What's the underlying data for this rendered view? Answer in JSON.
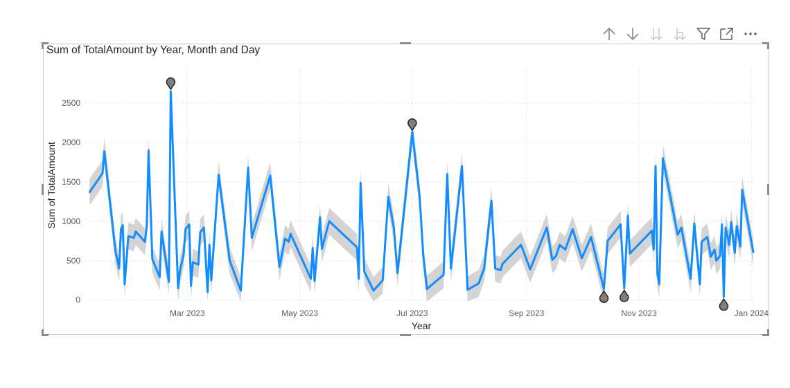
{
  "visual": {
    "title": "Sum of TotalAmount by Year, Month and Day"
  },
  "toolbar": {
    "items": [
      {
        "name": "drill-up",
        "icon": "arrow-up-icon"
      },
      {
        "name": "drill-down",
        "icon": "arrow-down-icon"
      },
      {
        "name": "next-level",
        "icon": "double-arrow-down-icon"
      },
      {
        "name": "expand-hierarchy",
        "icon": "fork-down-icon"
      },
      {
        "name": "filter",
        "icon": "filter-icon"
      },
      {
        "name": "focus-mode",
        "icon": "focus-mode-icon"
      },
      {
        "name": "more-options",
        "icon": "ellipsis-icon"
      }
    ]
  },
  "colors": {
    "line": "#118DFF",
    "band": "#cfcfcf",
    "anomaly_marker": "#7f7f7f",
    "grid": "#d6d6d6",
    "text": "#252423",
    "tick_text": "#605e5c"
  },
  "chart_data": {
    "type": "line",
    "title": "Sum of TotalAmount by Year, Month and Day",
    "xlabel": "Year",
    "ylabel": "Sum of TotalAmount",
    "ylim": [
      -20,
      2950
    ],
    "xlim": [
      "2023-01-05",
      "2024-01-02"
    ],
    "yticks": [
      0,
      500,
      1000,
      1500,
      2000,
      2500
    ],
    "xticks": [
      {
        "date": "2023-03-01",
        "label": "Mar 2023"
      },
      {
        "date": "2023-05-01",
        "label": "May 2023"
      },
      {
        "date": "2023-07-01",
        "label": "Jul 2023"
      },
      {
        "date": "2023-09-01",
        "label": "Sep 2023"
      },
      {
        "date": "2023-11-01",
        "label": "Nov 2023"
      },
      {
        "date": "2024-01-01",
        "label": "Jan 2024"
      }
    ],
    "grid": true,
    "series": [
      {
        "values": [
          [
            "2023-01-07",
            1370
          ],
          [
            "2023-01-14",
            1610
          ],
          [
            "2023-01-15",
            1890
          ],
          [
            "2023-01-21",
            620
          ],
          [
            "2023-01-23",
            400
          ],
          [
            "2023-01-24",
            900
          ],
          [
            "2023-01-25",
            950
          ],
          [
            "2023-01-26",
            200
          ],
          [
            "2023-01-28",
            810
          ],
          [
            "2023-01-31",
            790
          ],
          [
            "2023-02-01",
            870
          ],
          [
            "2023-02-06",
            740
          ],
          [
            "2023-02-07",
            940
          ],
          [
            "2023-02-08",
            1900
          ],
          [
            "2023-02-10",
            520
          ],
          [
            "2023-02-14",
            290
          ],
          [
            "2023-02-15",
            870
          ],
          [
            "2023-02-19",
            230
          ],
          [
            "2023-02-20",
            2650
          ],
          [
            "2023-02-24",
            150
          ],
          [
            "2023-02-25",
            370
          ],
          [
            "2023-02-27",
            580
          ],
          [
            "2023-02-28",
            900
          ],
          [
            "2023-03-02",
            960
          ],
          [
            "2023-03-03",
            180
          ],
          [
            "2023-03-04",
            480
          ],
          [
            "2023-03-07",
            450
          ],
          [
            "2023-03-08",
            860
          ],
          [
            "2023-03-10",
            920
          ],
          [
            "2023-03-12",
            100
          ],
          [
            "2023-03-13",
            700
          ],
          [
            "2023-03-14",
            250
          ],
          [
            "2023-03-18",
            1590
          ],
          [
            "2023-03-24",
            500
          ],
          [
            "2023-03-30",
            120
          ],
          [
            "2023-04-03",
            1680
          ],
          [
            "2023-04-05",
            790
          ],
          [
            "2023-04-15",
            1580
          ],
          [
            "2023-04-20",
            420
          ],
          [
            "2023-04-22",
            660
          ],
          [
            "2023-04-23",
            780
          ],
          [
            "2023-04-25",
            740
          ],
          [
            "2023-04-26",
            840
          ],
          [
            "2023-05-07",
            270
          ],
          [
            "2023-05-08",
            660
          ],
          [
            "2023-05-09",
            240
          ],
          [
            "2023-05-12",
            1050
          ],
          [
            "2023-05-13",
            650
          ],
          [
            "2023-05-17",
            1000
          ],
          [
            "2023-06-01",
            670
          ],
          [
            "2023-06-02",
            270
          ],
          [
            "2023-06-03",
            1490
          ],
          [
            "2023-06-05",
            360
          ],
          [
            "2023-06-10",
            120
          ],
          [
            "2023-06-15",
            250
          ],
          [
            "2023-06-18",
            1310
          ],
          [
            "2023-06-21",
            920
          ],
          [
            "2023-06-23",
            340
          ],
          [
            "2023-07-01",
            2130
          ],
          [
            "2023-07-05",
            1320
          ],
          [
            "2023-07-07",
            560
          ],
          [
            "2023-07-09",
            140
          ],
          [
            "2023-07-18",
            320
          ],
          [
            "2023-07-20",
            1600
          ],
          [
            "2023-07-22",
            400
          ],
          [
            "2023-07-28",
            1700
          ],
          [
            "2023-07-31",
            130
          ],
          [
            "2023-08-06",
            210
          ],
          [
            "2023-08-09",
            400
          ],
          [
            "2023-08-13",
            1260
          ],
          [
            "2023-08-15",
            400
          ],
          [
            "2023-08-18",
            380
          ],
          [
            "2023-08-19",
            460
          ],
          [
            "2023-08-29",
            700
          ],
          [
            "2023-09-03",
            390
          ],
          [
            "2023-09-12",
            920
          ],
          [
            "2023-09-15",
            510
          ],
          [
            "2023-09-17",
            560
          ],
          [
            "2023-09-19",
            700
          ],
          [
            "2023-09-22",
            640
          ],
          [
            "2023-09-26",
            900
          ],
          [
            "2023-10-01",
            530
          ],
          [
            "2023-10-06",
            800
          ],
          [
            "2023-10-13",
            140
          ],
          [
            "2023-10-15",
            750
          ],
          [
            "2023-10-22",
            960
          ],
          [
            "2023-10-24",
            150
          ],
          [
            "2023-10-26",
            1070
          ],
          [
            "2023-10-27",
            590
          ],
          [
            "2023-10-30",
            660
          ],
          [
            "2023-11-08",
            880
          ],
          [
            "2023-11-09",
            640
          ],
          [
            "2023-11-10",
            1700
          ],
          [
            "2023-11-11",
            330
          ],
          [
            "2023-11-12",
            200
          ],
          [
            "2023-11-14",
            1800
          ],
          [
            "2023-11-22",
            830
          ],
          [
            "2023-11-24",
            920
          ],
          [
            "2023-11-29",
            270
          ],
          [
            "2023-12-01",
            970
          ],
          [
            "2023-12-04",
            200
          ],
          [
            "2023-12-05",
            740
          ],
          [
            "2023-12-08",
            800
          ],
          [
            "2023-12-10",
            550
          ],
          [
            "2023-12-12",
            640
          ],
          [
            "2023-12-13",
            500
          ],
          [
            "2023-12-15",
            560
          ],
          [
            "2023-12-16",
            960
          ],
          [
            "2023-12-17",
            40
          ],
          [
            "2023-12-18",
            920
          ],
          [
            "2023-12-20",
            700
          ],
          [
            "2023-12-21",
            990
          ],
          [
            "2023-12-23",
            600
          ],
          [
            "2023-12-24",
            940
          ],
          [
            "2023-12-26",
            680
          ],
          [
            "2023-12-27",
            1400
          ],
          [
            "2023-12-30",
            1000
          ],
          [
            "2024-01-02",
            610
          ]
        ]
      }
    ],
    "anomalies": [
      [
        "2023-02-20",
        2650
      ],
      [
        "2023-07-01",
        2130
      ],
      [
        "2023-10-13",
        140
      ],
      [
        "2023-10-24",
        150
      ],
      [
        "2023-12-17",
        40
      ]
    ]
  }
}
